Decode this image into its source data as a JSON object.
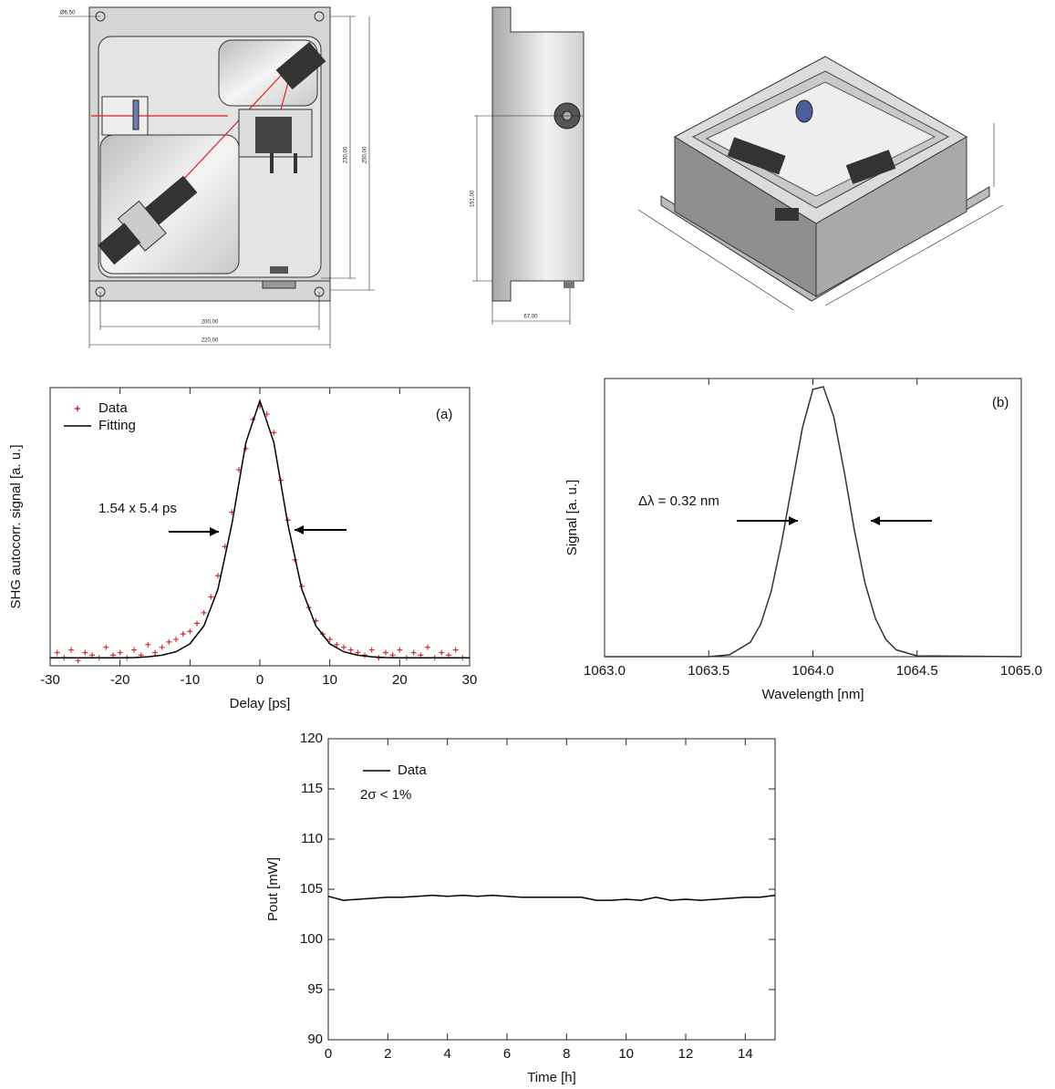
{
  "drawings": {
    "front_view": {
      "dimensions": [
        "Ø6,50",
        "230,00",
        "250,00",
        "200,00",
        "220,00"
      ]
    },
    "side_view": {
      "dimensions": [
        "151,00",
        "67,00"
      ]
    }
  },
  "chart_data": [
    {
      "type": "line",
      "panel": "(a)",
      "x_label": "Delay [ps]",
      "y_label": "SHG autocorr. signal [a. u.]",
      "xlim": [
        -30,
        30
      ],
      "ylim": [
        0,
        1.05
      ],
      "xticks": [
        -30,
        -20,
        -10,
        0,
        10,
        20,
        30
      ],
      "legend": "upper left",
      "annotations": [
        "1.54 x 5.4 ps"
      ],
      "series": [
        {
          "name": "Data",
          "color": "#d03030",
          "style": "markers",
          "x": [
            -29,
            -28,
            -27,
            -26,
            -25,
            -24,
            -23,
            -22,
            -21,
            -20,
            -19,
            -18,
            -17,
            -16,
            -15,
            -14,
            -13,
            -12,
            -11,
            -10,
            -9,
            -8,
            -7,
            -6,
            -5,
            -4,
            -3,
            -2,
            -1,
            0,
            1,
            2,
            3,
            4,
            5,
            6,
            7,
            8,
            9,
            10,
            11,
            12,
            13,
            14,
            15,
            16,
            17,
            18,
            19,
            20,
            21,
            22,
            23,
            24,
            25,
            26,
            27,
            28,
            29
          ],
          "values": [
            0.05,
            0.03,
            0.06,
            0.02,
            0.05,
            0.04,
            0.03,
            0.07,
            0.04,
            0.05,
            0.03,
            0.06,
            0.04,
            0.08,
            0.05,
            0.07,
            0.09,
            0.1,
            0.12,
            0.13,
            0.16,
            0.2,
            0.26,
            0.34,
            0.45,
            0.58,
            0.74,
            0.82,
            0.93,
            0.98,
            0.95,
            0.88,
            0.7,
            0.55,
            0.4,
            0.3,
            0.22,
            0.17,
            0.12,
            0.1,
            0.08,
            0.07,
            0.06,
            0.05,
            0.04,
            0.06,
            0.03,
            0.05,
            0.04,
            0.06,
            0.03,
            0.05,
            0.04,
            0.07,
            0.03,
            0.05,
            0.04,
            0.06,
            0.03
          ]
        },
        {
          "name": "Fitting",
          "color": "#000000",
          "style": "line",
          "x": [
            -30,
            -28,
            -26,
            -24,
            -22,
            -20,
            -18,
            -16,
            -14,
            -12,
            -10,
            -8,
            -6,
            -4,
            -2,
            0,
            2,
            4,
            6,
            8,
            10,
            12,
            14,
            16,
            18,
            20,
            22,
            24,
            26,
            28,
            30
          ],
          "values": [
            0.03,
            0.03,
            0.03,
            0.03,
            0.03,
            0.03,
            0.031,
            0.034,
            0.04,
            0.053,
            0.083,
            0.151,
            0.289,
            0.535,
            0.843,
            1.0,
            0.843,
            0.535,
            0.289,
            0.151,
            0.083,
            0.053,
            0.04,
            0.034,
            0.031,
            0.03,
            0.03,
            0.03,
            0.03,
            0.03,
            0.03
          ]
        }
      ]
    },
    {
      "type": "line",
      "panel": "(b)",
      "x_label": "Wavelength [nm]",
      "y_label": "Signal [a. u.]",
      "xlim": [
        1063.0,
        1065.0
      ],
      "ylim": [
        0,
        1.02
      ],
      "xticks": [
        {
          "value": 1063,
          "label": "1063.0"
        },
        1063.5,
        {
          "value": 1064,
          "label": "1064.0"
        },
        1064.5,
        {
          "value": 1065,
          "label": "1065.0"
        }
      ],
      "annotations": [
        "Δλ = 0.32 nm"
      ],
      "series": [
        {
          "color": "#333333",
          "style": "line",
          "x": [
            1063.0,
            1063.5,
            1063.6,
            1063.7,
            1063.75,
            1063.8,
            1063.85,
            1063.9,
            1063.95,
            1064.0,
            1064.05,
            1064.1,
            1064.15,
            1064.2,
            1064.25,
            1064.3,
            1064.35,
            1064.4,
            1064.5,
            1065.0
          ],
          "values": [
            0,
            0,
            0.007,
            0.053,
            0.12,
            0.24,
            0.42,
            0.63,
            0.84,
            0.98,
            0.99,
            0.88,
            0.68,
            0.46,
            0.27,
            0.14,
            0.063,
            0.025,
            0.003,
            0
          ]
        }
      ]
    },
    {
      "type": "line",
      "x_label": "Time [h]",
      "y_label": "Pout [mW]",
      "xlim": [
        0,
        15
      ],
      "ylim": [
        90,
        120
      ],
      "xticks": [
        0,
        2,
        4,
        6,
        8,
        10,
        12,
        14
      ],
      "yticks": [
        90,
        95,
        100,
        105,
        110,
        115,
        120
      ],
      "legend": "upper left",
      "annotations": [
        "2σ < 1%"
      ],
      "series": [
        {
          "name": "Data",
          "color": "#000000",
          "style": "line",
          "x": [
            0,
            0.5,
            1,
            1.5,
            2,
            2.5,
            3,
            3.5,
            4,
            4.5,
            5,
            5.5,
            6,
            6.5,
            7,
            7.5,
            8,
            8.5,
            9,
            9.5,
            10,
            10.5,
            11,
            11.5,
            12,
            12.5,
            13,
            13.5,
            14,
            14.5,
            15
          ],
          "values": [
            104.3,
            103.9,
            104.0,
            104.1,
            104.2,
            104.2,
            104.3,
            104.4,
            104.3,
            104.4,
            104.3,
            104.4,
            104.3,
            104.2,
            104.2,
            104.2,
            104.2,
            104.2,
            103.9,
            103.9,
            104.0,
            103.9,
            104.2,
            103.9,
            104.0,
            103.9,
            104.0,
            104.1,
            104.2,
            104.2,
            104.4
          ]
        }
      ]
    }
  ]
}
